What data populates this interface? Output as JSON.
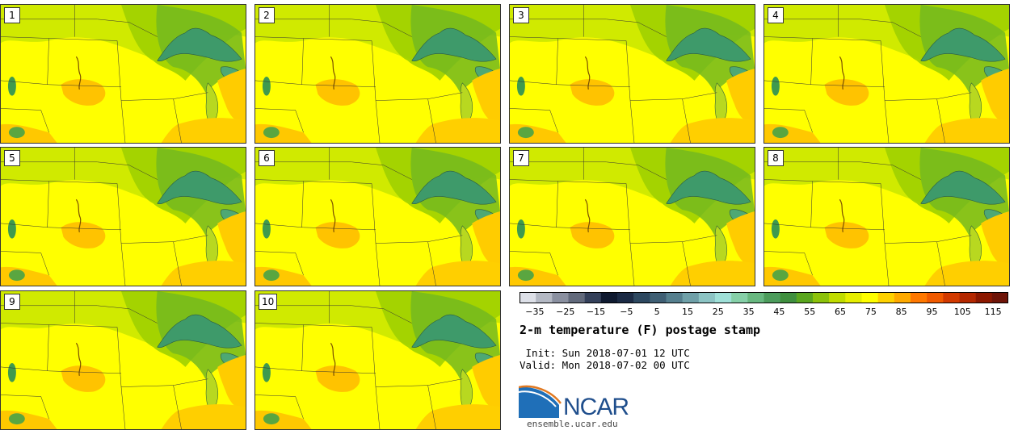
{
  "panels": [
    {
      "label": "1"
    },
    {
      "label": "2"
    },
    {
      "label": "3"
    },
    {
      "label": "4"
    },
    {
      "label": "5"
    },
    {
      "label": "6"
    },
    {
      "label": "7"
    },
    {
      "label": "8"
    },
    {
      "label": "9"
    },
    {
      "label": "10"
    }
  ],
  "colorbar": {
    "colors": [
      "#dde0e8",
      "#b4b9c4",
      "#8a90a0",
      "#626a7c",
      "#34405a",
      "#0f1a30",
      "#1b2a44",
      "#2d4860",
      "#3f5f74",
      "#557f8e",
      "#6fa0a8",
      "#8cc4c4",
      "#9fe0d8",
      "#86d0a8",
      "#68b880",
      "#4c9c5c",
      "#3f8f3e",
      "#5aa61e",
      "#8cc20a",
      "#c0dc00",
      "#e6ee00",
      "#ffff00",
      "#ffd200",
      "#ffaa00",
      "#ff7800",
      "#f05a00",
      "#d23a00",
      "#b42800",
      "#8c1800",
      "#6e1408"
    ],
    "tick_labels": [
      "−35",
      "−25",
      "−15",
      "−5",
      "5",
      "15",
      "25",
      "35",
      "45",
      "55",
      "65",
      "75",
      "85",
      "95",
      "105",
      "115"
    ],
    "tick_values": [
      -35,
      -25,
      -15,
      -5,
      5,
      15,
      25,
      35,
      45,
      55,
      65,
      75,
      85,
      95,
      105,
      115
    ],
    "range": [
      -40,
      120
    ]
  },
  "title": "2-m temperature (F) postage stamp",
  "init_line": " Init: Sun 2018-07-01 12 UTC",
  "valid_line": "Valid: Mon 2018-07-02 00 UTC",
  "logo_text": "NCAR",
  "website": "ensemble.ucar.edu"
}
